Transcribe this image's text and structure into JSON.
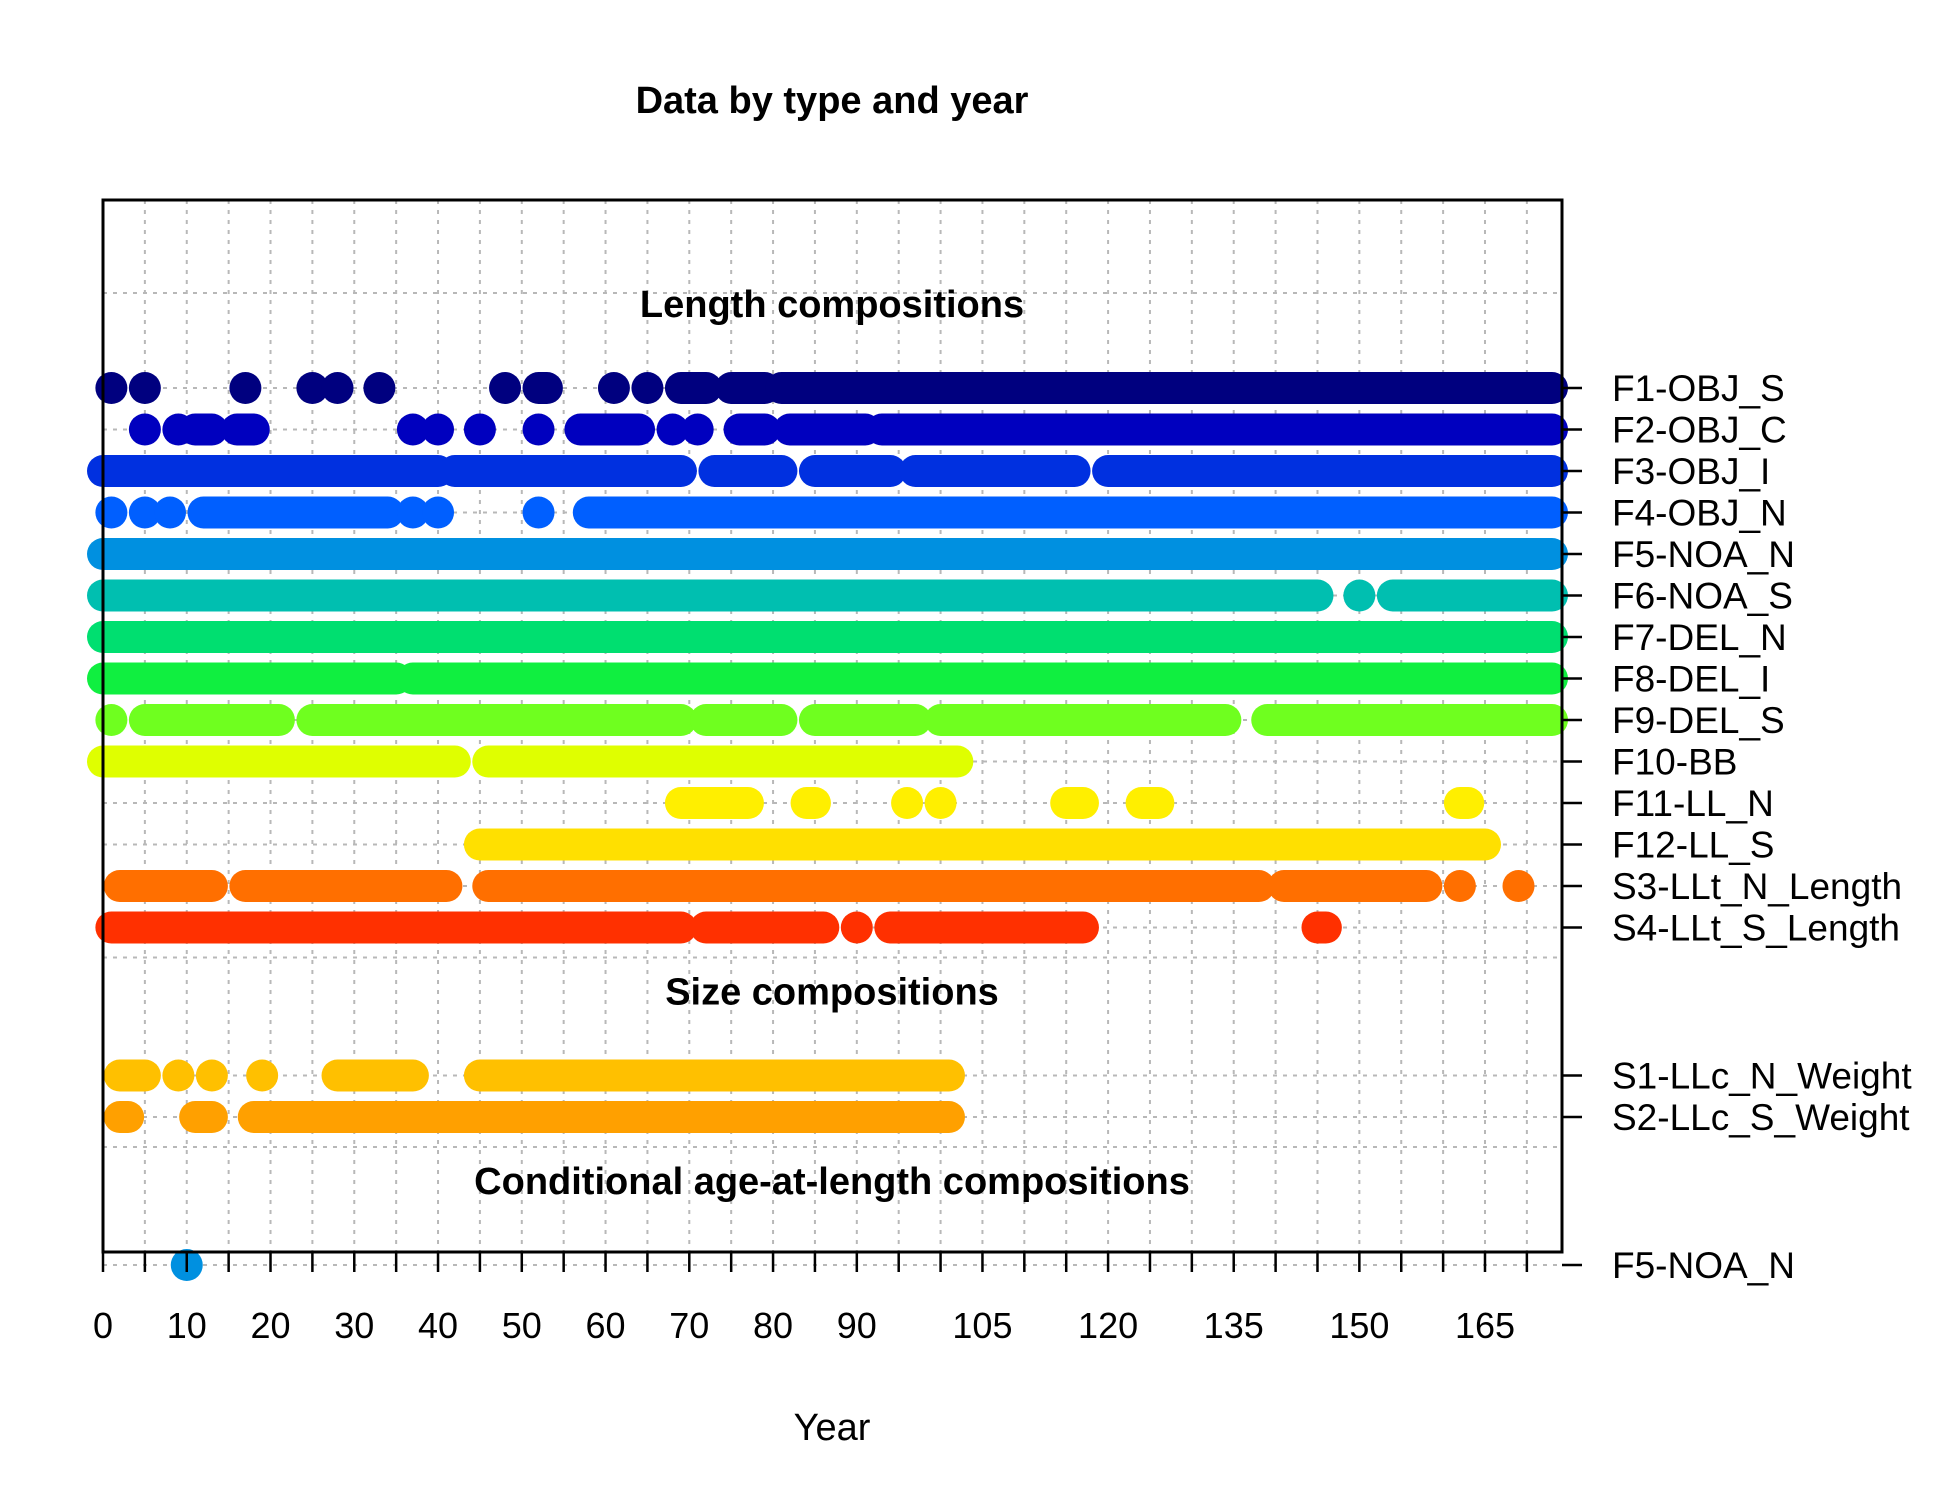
{
  "chart_data": {
    "type": "scatter",
    "title": "Data by type and year",
    "xlabel": "Year",
    "ylabel": "",
    "grid": true,
    "x_ticks": [
      {
        "label": "0",
        "value": 0
      },
      {
        "label": "10",
        "value": 10
      },
      {
        "label": "20",
        "value": 20
      },
      {
        "label": "30",
        "value": 30
      },
      {
        "label": "40",
        "value": 40
      },
      {
        "label": "50",
        "value": 50
      },
      {
        "label": "60",
        "value": 60
      },
      {
        "label": "70",
        "value": 70
      },
      {
        "label": "80",
        "value": 80
      },
      {
        "label": "90",
        "value": 90
      },
      {
        "label": "105",
        "value": 105
      },
      {
        "label": "120",
        "value": 120
      },
      {
        "label": "135",
        "value": 135
      },
      {
        "label": "150",
        "value": 150
      },
      {
        "label": "165",
        "value": 165
      }
    ],
    "xlim": [
      0,
      173
    ],
    "sections": [
      {
        "label": "Length compositions",
        "series": [
          {
            "name": "F1-OBJ_S",
            "color": "#00007F",
            "ranges": [
              [
                1,
                1
              ],
              [
                5,
                5
              ],
              [
                17,
                17
              ],
              [
                25,
                25
              ],
              [
                28,
                28
              ],
              [
                33,
                33
              ],
              [
                48,
                48
              ],
              [
                52,
                53
              ],
              [
                61,
                61
              ],
              [
                65,
                65
              ],
              [
                69,
                72
              ],
              [
                75,
                79
              ],
              [
                81,
                173
              ]
            ]
          },
          {
            "name": "F2-OBJ_C",
            "color": "#0000BF",
            "ranges": [
              [
                5,
                5
              ],
              [
                9,
                9
              ],
              [
                11,
                13
              ],
              [
                16,
                18
              ],
              [
                37,
                37
              ],
              [
                40,
                40
              ],
              [
                45,
                45
              ],
              [
                52,
                52
              ],
              [
                57,
                64
              ],
              [
                68,
                68
              ],
              [
                71,
                71
              ],
              [
                76,
                79
              ],
              [
                82,
                91
              ],
              [
                93,
                173
              ]
            ]
          },
          {
            "name": "F3-OBJ_I",
            "color": "#0030E0",
            "ranges": [
              [
                0,
                40
              ],
              [
                42,
                69
              ],
              [
                73,
                81
              ],
              [
                85,
                94
              ],
              [
                97,
                116
              ],
              [
                120,
                173
              ]
            ]
          },
          {
            "name": "F4-OBJ_N",
            "color": "#005FFF",
            "ranges": [
              [
                1,
                1
              ],
              [
                5,
                5
              ],
              [
                8,
                8
              ],
              [
                12,
                34
              ],
              [
                37,
                37
              ],
              [
                40,
                40
              ],
              [
                52,
                52
              ],
              [
                58,
                173
              ]
            ]
          },
          {
            "name": "F5-NOA_N",
            "color": "#0090E0",
            "ranges": [
              [
                0,
                173
              ]
            ]
          },
          {
            "name": "F6-NOA_S",
            "color": "#00BFB0",
            "ranges": [
              [
                0,
                145
              ],
              [
                150,
                150
              ],
              [
                154,
                173
              ]
            ]
          },
          {
            "name": "F7-DEL_N",
            "color": "#00DF70",
            "ranges": [
              [
                0,
                173
              ]
            ]
          },
          {
            "name": "F8-DEL_I",
            "color": "#10EF40",
            "ranges": [
              [
                0,
                35
              ],
              [
                37,
                173
              ]
            ]
          },
          {
            "name": "F9-DEL_S",
            "color": "#6FFF1F",
            "ranges": [
              [
                1,
                1
              ],
              [
                5,
                21
              ],
              [
                25,
                69
              ],
              [
                72,
                81
              ],
              [
                85,
                97
              ],
              [
                100,
                134
              ],
              [
                139,
                173
              ]
            ]
          },
          {
            "name": "F10-BB",
            "color": "#DFFF00",
            "ranges": [
              [
                0,
                42
              ],
              [
                46,
                102
              ]
            ]
          },
          {
            "name": "F11-LL_N",
            "color": "#FFEF00",
            "ranges": [
              [
                69,
                77
              ],
              [
                84,
                85
              ],
              [
                96,
                96
              ],
              [
                100,
                100
              ],
              [
                115,
                117
              ],
              [
                124,
                126
              ],
              [
                162,
                163
              ]
            ]
          },
          {
            "name": "F12-LL_S",
            "color": "#FFE000",
            "ranges": [
              [
                45,
                165
              ]
            ]
          },
          {
            "name": "S3-LLt_N_Length",
            "color": "#FF6F00",
            "ranges": [
              [
                2,
                13
              ],
              [
                17,
                41
              ],
              [
                46,
                138
              ],
              [
                141,
                158
              ],
              [
                162,
                162
              ],
              [
                169,
                169
              ]
            ]
          },
          {
            "name": "S4-LLt_S_Length",
            "color": "#FF3000",
            "ranges": [
              [
                1,
                69
              ],
              [
                72,
                86
              ],
              [
                90,
                90
              ],
              [
                94,
                117
              ],
              [
                145,
                146
              ]
            ]
          }
        ]
      },
      {
        "label": "Size compositions",
        "series": [
          {
            "name": "S1-LLc_N_Weight",
            "color": "#FFC000",
            "ranges": [
              [
                2,
                5
              ],
              [
                9,
                9
              ],
              [
                13,
                13
              ],
              [
                19,
                19
              ],
              [
                28,
                37
              ],
              [
                45,
                101
              ]
            ]
          },
          {
            "name": "S2-LLc_S_Weight",
            "color": "#FFA000",
            "ranges": [
              [
                2,
                3
              ],
              [
                11,
                13
              ],
              [
                18,
                101
              ]
            ]
          }
        ]
      },
      {
        "label": "Conditional age-at-length compositions",
        "series": [
          {
            "name": "F5-NOA_N",
            "color": "#0090E0",
            "ranges": [
              [
                10,
                10
              ]
            ]
          }
        ]
      }
    ]
  }
}
